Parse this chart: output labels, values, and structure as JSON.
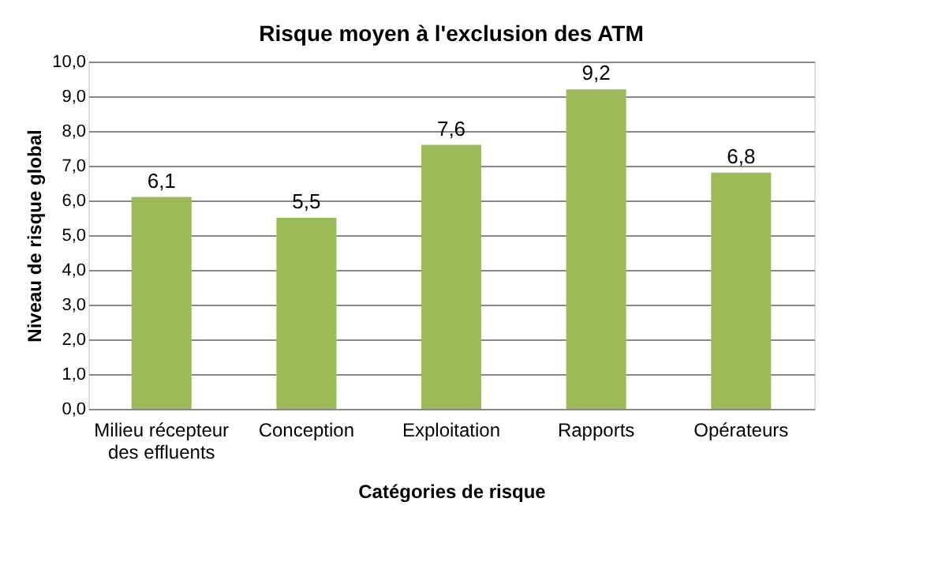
{
  "chart_data": {
    "type": "bar",
    "title": "Risque moyen à l'exclusion des ATM",
    "xlabel": "Catégories de risque",
    "ylabel": "Niveau de risque global",
    "categories": [
      "Milieu récepteur des effluents",
      "Conception",
      "Exploitation",
      "Rapports",
      "Opérateurs"
    ],
    "values": [
      6.1,
      5.5,
      7.6,
      9.2,
      6.8
    ],
    "color": "#9bbb59",
    "ylim": [
      0,
      10
    ],
    "yticks": [
      {
        "value": 0,
        "label": "0,0"
      },
      {
        "value": 1,
        "label": "1,0"
      },
      {
        "value": 2,
        "label": "2,0"
      },
      {
        "value": 3,
        "label": "3,0"
      },
      {
        "value": 4,
        "label": "4,0"
      },
      {
        "value": 5,
        "label": "5,0"
      },
      {
        "value": 6,
        "label": "6,0"
      },
      {
        "value": 7,
        "label": "7,0"
      },
      {
        "value": 8,
        "label": "8,0"
      },
      {
        "value": 9,
        "label": "9,0"
      },
      {
        "value": 10,
        "label": "10,0"
      }
    ],
    "grid": "y",
    "value_labels": [
      "6,1",
      "5,5",
      "7,6",
      "9,2",
      "6,8"
    ]
  }
}
